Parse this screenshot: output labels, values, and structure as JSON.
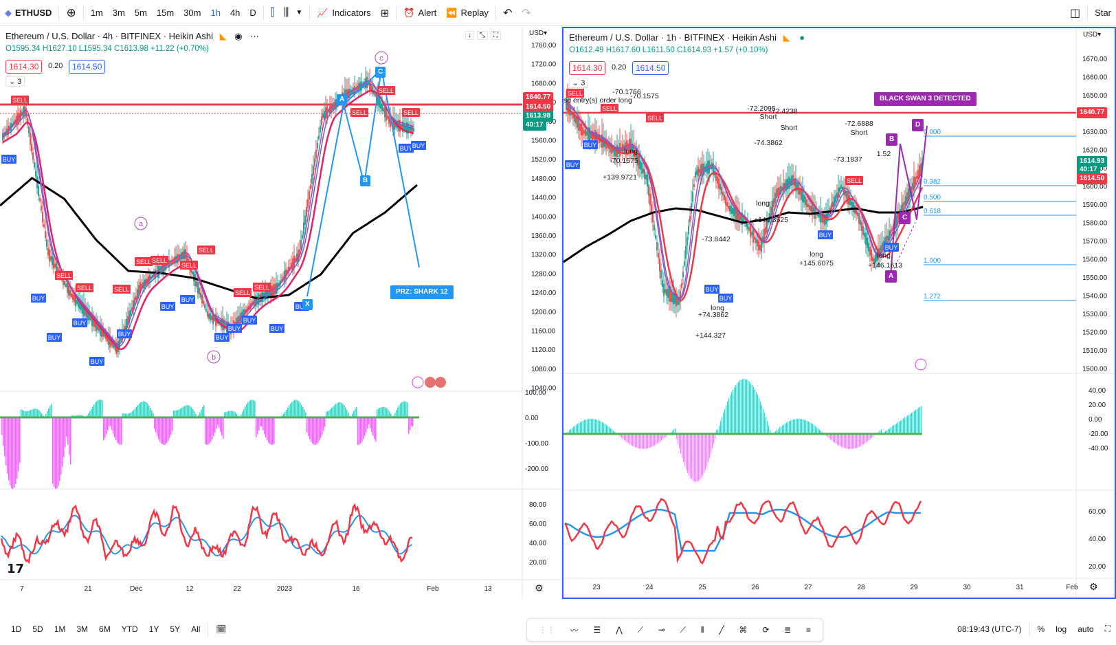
{
  "toolbar": {
    "symbol": "ETHUSD",
    "intervals": [
      "1m",
      "3m",
      "5m",
      "15m",
      "30m",
      "1h",
      "4h",
      "D"
    ],
    "active_interval": "1h",
    "indicators": "Indicators",
    "alert": "Alert",
    "replay": "Replay",
    "right_label": "Star"
  },
  "left": {
    "title": "Ethereum / U.S. Dollar · 4h · BITFINEX · Heikin Ashi",
    "ohlc": {
      "o": "O1595.34",
      "h": "H1627.10",
      "l": "L1595.34",
      "c": "C1613.98",
      "chg": "+11.22 (+0.70%)"
    },
    "bid": "1614.30",
    "spread": "0.20",
    "ask": "1614.50",
    "indicator_count": "3",
    "currency": "USD",
    "price_ticks": [
      "1760.00",
      "1720.00",
      "1680.00",
      "1640.00",
      "1600.00",
      "1560.00",
      "1520.00",
      "1480.00",
      "1440.00",
      "1400.00",
      "1360.00",
      "1320.00",
      "1280.00",
      "1240.00",
      "1200.00",
      "1160.00",
      "1120.00",
      "1080.00",
      "1040.00"
    ],
    "level_label": "1640.77",
    "ask_label": "1614.50",
    "last_label": "1613.98",
    "countdown": "40:17",
    "osc_ticks": [
      "100.00",
      "0.00",
      "-100.00",
      "-200.00"
    ],
    "rsi_ticks": [
      "80.00",
      "60.00",
      "40.00",
      "20.00"
    ],
    "time_ticks": [
      "7",
      "21",
      "Dec",
      "12",
      "22",
      "2023",
      "16",
      "Feb",
      "13"
    ],
    "wave_labels": [
      "a",
      "b",
      "c"
    ],
    "pattern_labels": [
      "A",
      "B",
      "C",
      "X"
    ],
    "przt": "PRZ: SHARK 12",
    "signals": {
      "buy": "BUY",
      "sell": "SELL"
    }
  },
  "right": {
    "title": "Ethereum / U.S. Dollar · 1h · BITFINEX · Heikin Ashi",
    "ohlc": {
      "o": "O1612.49",
      "h": "H1617.60",
      "l": "L1611.50",
      "c": "C1614.93",
      "chg": "+1.57 (+0.10%)"
    },
    "bid": "1614.30",
    "spread": "0.20",
    "ask": "1614.50",
    "indicator_count": "3",
    "currency": "USD",
    "price_ticks": [
      "1670.00",
      "1660.00",
      "1650.00",
      "1640.00",
      "1630.00",
      "1620.00",
      "1610.00",
      "1600.00",
      "1590.00",
      "1580.00",
      "1570.00",
      "1560.00",
      "1550.00",
      "1540.00",
      "1530.00",
      "1520.00",
      "1510.00",
      "1500.00"
    ],
    "level_label": "1640.77",
    "last_label": "1614.93",
    "countdown": "40:17",
    "ask_label": "1614.50",
    "osc_ticks": [
      "40.00",
      "20.00",
      "0.00",
      "-20.00",
      "-40.00"
    ],
    "rsi_ticks": [
      "60.00",
      "40.00",
      "20.00"
    ],
    "time_ticks": [
      "23",
      "24",
      "25",
      "26",
      "27",
      "28",
      "29",
      "30",
      "31",
      "Feb"
    ],
    "black_swan": "BLACK SWAN 3 DETECTED",
    "fib": [
      "0.000",
      "0.382",
      "0.500",
      "0.618",
      "1.000",
      "1.272"
    ],
    "pattern_labels": [
      "A",
      "B",
      "C",
      "D"
    ],
    "annotations": [
      "-70.1766",
      "-70.1575",
      "Close entry(s) order long",
      "-72.2095",
      "Short",
      "-72.4238",
      "Short",
      "-72.6888",
      "Short",
      "-74.3862",
      "-73.1837",
      "-70.1575",
      "long",
      "+139.9721",
      "long",
      "+144.3525",
      "-73.8442",
      "+145.6075",
      "+146.1613",
      "+74.3862",
      "+144.327",
      "long",
      "long",
      "long",
      "1.52"
    ]
  },
  "bottom": {
    "ranges": [
      "1D",
      "5D",
      "1M",
      "3M",
      "6M",
      "YTD",
      "1Y",
      "5Y",
      "All"
    ],
    "clock": "08:19:43 (UTC-7)",
    "pct": "%",
    "log": "log",
    "auto": "auto"
  },
  "colors": {
    "red": "#f23645",
    "blue": "#2962ff",
    "green": "#089981",
    "black": "#000000",
    "magenta": "#e040fb",
    "purple": "#9c27b0"
  }
}
